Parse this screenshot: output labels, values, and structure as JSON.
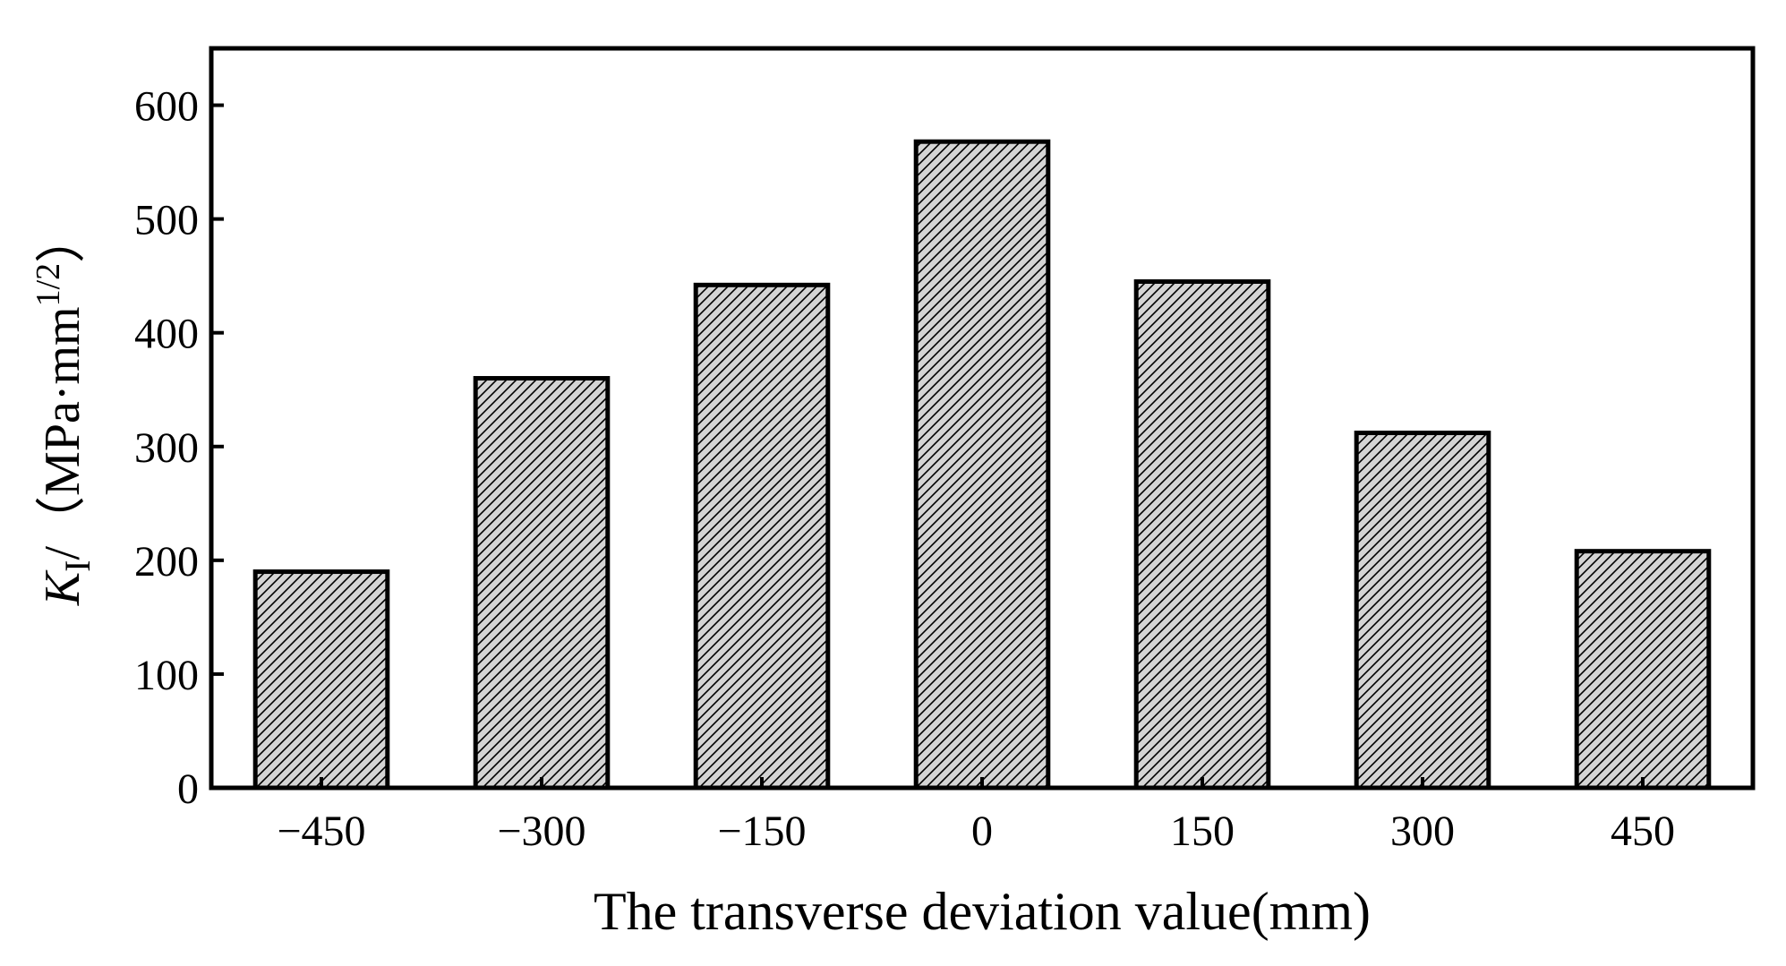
{
  "chart_data": {
    "type": "bar",
    "categories": [
      "−450",
      "−300",
      "−150",
      "0",
      "150",
      "300",
      "450"
    ],
    "values": [
      190,
      360,
      442,
      568,
      445,
      312,
      208
    ],
    "xlabel": "The transverse deviation value(mm)",
    "ylabel": {
      "symbol": "K",
      "subscript": "I",
      "unit_prefix": "/（MPa·mm",
      "unit_superscript": "1/2",
      "unit_suffix": "）"
    },
    "yticks": [
      "0",
      "100",
      "200",
      "300",
      "400",
      "500",
      "600"
    ],
    "ytick_values": [
      0,
      100,
      200,
      300,
      400,
      500,
      600
    ],
    "ylim": [
      0,
      650
    ],
    "grid": false,
    "legend": "none",
    "bar_fill": "#d4d4d4",
    "bar_hatch": "diagonal",
    "bar_stroke": "#000000"
  }
}
